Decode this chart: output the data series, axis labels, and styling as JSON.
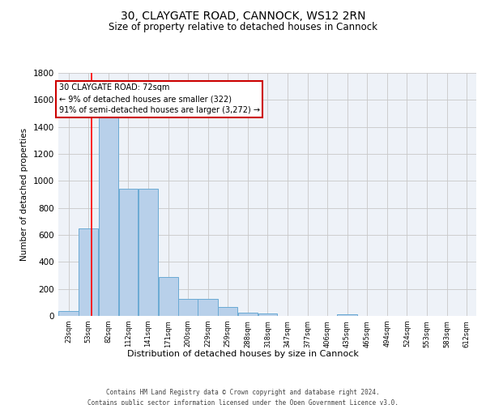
{
  "title_line1": "30, CLAYGATE ROAD, CANNOCK, WS12 2RN",
  "title_line2": "Size of property relative to detached houses in Cannock",
  "xlabel": "Distribution of detached houses by size in Cannock",
  "ylabel": "Number of detached properties",
  "bin_labels": [
    "23sqm",
    "53sqm",
    "82sqm",
    "112sqm",
    "141sqm",
    "171sqm",
    "200sqm",
    "229sqm",
    "259sqm",
    "288sqm",
    "318sqm",
    "347sqm",
    "377sqm",
    "406sqm",
    "435sqm",
    "465sqm",
    "494sqm",
    "524sqm",
    "553sqm",
    "583sqm",
    "612sqm"
  ],
  "bar_values": [
    35,
    650,
    1470,
    940,
    940,
    290,
    125,
    125,
    65,
    25,
    20,
    0,
    0,
    0,
    15,
    0,
    0,
    0,
    0,
    0,
    0
  ],
  "bin_edges": [
    23,
    53,
    82,
    112,
    141,
    171,
    200,
    229,
    259,
    288,
    318,
    347,
    377,
    406,
    435,
    465,
    494,
    524,
    553,
    583,
    612
  ],
  "bar_color": "#b8d0ea",
  "bar_edge_color": "#6aaad4",
  "property_size": 72,
  "red_line_x": 72,
  "annotation_text": "30 CLAYGATE ROAD: 72sqm\n← 9% of detached houses are smaller (322)\n91% of semi-detached houses are larger (3,272) →",
  "annotation_box_color": "#cc0000",
  "ylim": [
    0,
    1800
  ],
  "yticks": [
    0,
    200,
    400,
    600,
    800,
    1000,
    1200,
    1400,
    1600,
    1800
  ],
  "grid_color": "#c8c8c8",
  "background_color": "#eef2f8",
  "footer_line1": "Contains HM Land Registry data © Crown copyright and database right 2024.",
  "footer_line2": "Contains public sector information licensed under the Open Government Licence v3.0."
}
